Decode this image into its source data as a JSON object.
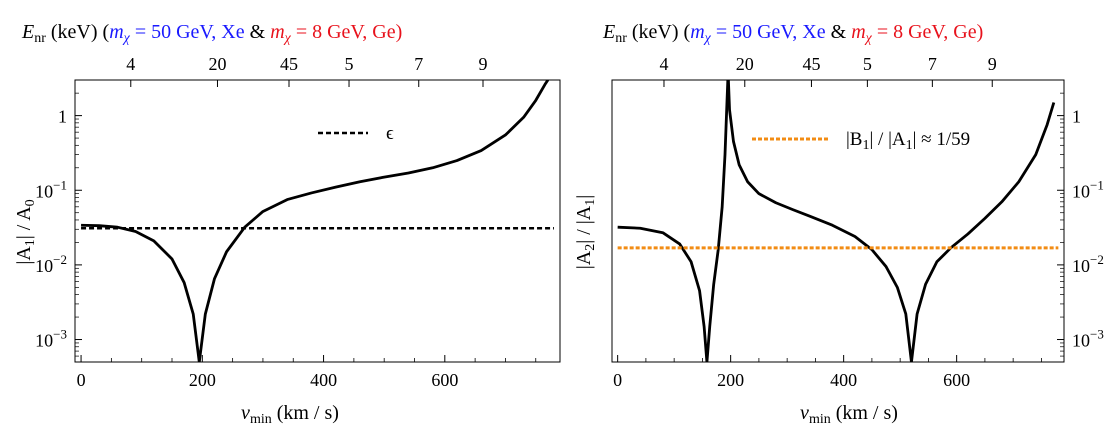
{
  "colors": {
    "blue": "#1a1aff",
    "red": "#e8121c",
    "curve": "#000000",
    "eps_line": "#000000",
    "b_line": "#f28c14"
  },
  "top_title": {
    "e": "E",
    "nr": "nr",
    "kev": " (keV) (",
    "m1": "m",
    "chi1": "χ",
    "eq1": " = 50 GeV, Xe",
    "amp": " & ",
    "m2": "m",
    "chi2": "χ",
    "eq2": " = 8 GeV, Ge)",
    "close": ")"
  },
  "x_axis_title": {
    "v": "v",
    "min": "min",
    "units": "  (km / s)"
  },
  "chart_data": [
    {
      "type": "line",
      "x_ticks": [
        0,
        200,
        400,
        600
      ],
      "x_tick_labels": [
        "0",
        "200",
        "400",
        "600"
      ],
      "xlim": [
        -10,
        790
      ],
      "yscale": "log",
      "ylim": [
        0.0005,
        3
      ],
      "y_ticks": [
        0.001,
        0.01,
        0.1,
        1
      ],
      "y_tick_labels": [
        {
          "base": "10",
          "exp": "−3"
        },
        {
          "base": "10",
          "exp": "−2"
        },
        {
          "base": "10",
          "exp": "−1"
        },
        {
          "base": "1",
          "exp": ""
        }
      ],
      "y_label_side": "left",
      "ylabel": {
        "a": "|A",
        "sub1": "1",
        "b": "| / A",
        "sub2": "0"
      },
      "top_ticks": [
        {
          "label": "4",
          "x": 82,
          "color": "blue"
        },
        {
          "label": "20",
          "x": 225,
          "color": "blue"
        },
        {
          "label": "45",
          "x": 343,
          "color": "blue"
        },
        {
          "label": "5",
          "x": 442,
          "color": "red"
        },
        {
          "label": "7",
          "x": 557,
          "color": "red"
        },
        {
          "label": "9",
          "x": 663,
          "color": "red"
        }
      ],
      "series": [
        {
          "style": "solid",
          "points": [
            [
              0,
              0.034
            ],
            [
              30,
              0.0335
            ],
            [
              60,
              0.032
            ],
            [
              90,
              0.028
            ],
            [
              120,
              0.021
            ],
            [
              150,
              0.012
            ],
            [
              170,
              0.0058
            ],
            [
              185,
              0.0022
            ],
            [
              195,
              0.0005
            ],
            [
              205,
              0.0022
            ],
            [
              220,
              0.0065
            ],
            [
              240,
              0.015
            ],
            [
              270,
              0.032
            ],
            [
              300,
              0.052
            ],
            [
              340,
              0.075
            ],
            [
              380,
              0.092
            ],
            [
              420,
              0.11
            ],
            [
              460,
              0.13
            ],
            [
              500,
              0.15
            ],
            [
              540,
              0.17
            ],
            [
              580,
              0.2
            ],
            [
              620,
              0.25
            ],
            [
              660,
              0.34
            ],
            [
              700,
              0.55
            ],
            [
              730,
              0.95
            ],
            [
              750,
              1.6
            ],
            [
              765,
              2.6
            ],
            [
              770,
              3
            ]
          ]
        },
        {
          "style": "dashed",
          "points": [
            [
              0,
              0.031
            ],
            [
              780,
              0.031
            ]
          ]
        }
      ],
      "legend": {
        "text": "ϵ",
        "placement": "top-right"
      }
    },
    {
      "type": "line",
      "x_ticks": [
        0,
        200,
        400,
        600
      ],
      "x_tick_labels": [
        "0",
        "200",
        "400",
        "600"
      ],
      "xlim": [
        -10,
        790
      ],
      "yscale": "log",
      "ylim": [
        0.0005,
        3
      ],
      "y_ticks": [
        0.001,
        0.01,
        0.1,
        1
      ],
      "y_tick_labels": [
        {
          "base": "10",
          "exp": "−3"
        },
        {
          "base": "10",
          "exp": "−2"
        },
        {
          "base": "10",
          "exp": "−1"
        },
        {
          "base": "1",
          "exp": ""
        }
      ],
      "y_label_side": "right",
      "ylabel": {
        "a": "|A",
        "sub1": "2",
        "b": "| / |A",
        "sub2": "1",
        "c": "|"
      },
      "top_ticks": [
        {
          "label": "4",
          "x": 82,
          "color": "blue"
        },
        {
          "label": "20",
          "x": 225,
          "color": "blue"
        },
        {
          "label": "45",
          "x": 343,
          "color": "blue"
        },
        {
          "label": "5",
          "x": 442,
          "color": "red"
        },
        {
          "label": "7",
          "x": 557,
          "color": "red"
        },
        {
          "label": "9",
          "x": 663,
          "color": "red"
        }
      ],
      "series": [
        {
          "style": "solid",
          "points": [
            [
              0,
              0.032
            ],
            [
              40,
              0.031
            ],
            [
              80,
              0.027
            ],
            [
              110,
              0.019
            ],
            [
              130,
              0.011
            ],
            [
              145,
              0.0045
            ],
            [
              153,
              0.0015
            ],
            [
              158,
              0.0005
            ],
            [
              163,
              0.0015
            ],
            [
              170,
              0.0055
            ],
            [
              178,
              0.016
            ],
            [
              185,
              0.06
            ],
            [
              190,
              0.3
            ],
            [
              193,
              1.2
            ],
            [
              195,
              3
            ]
          ]
        },
        {
          "style": "solid",
          "points": [
            [
              196,
              3
            ],
            [
              198,
              1.2
            ],
            [
              205,
              0.45
            ],
            [
              215,
              0.22
            ],
            [
              230,
              0.13
            ],
            [
              250,
              0.09
            ],
            [
              280,
              0.068
            ],
            [
              310,
              0.055
            ],
            [
              340,
              0.045
            ],
            [
              380,
              0.034
            ],
            [
              420,
              0.024
            ],
            [
              450,
              0.016
            ],
            [
              475,
              0.0095
            ],
            [
              495,
              0.005
            ],
            [
              510,
              0.0022
            ],
            [
              520,
              0.0005
            ],
            [
              530,
              0.0022
            ],
            [
              545,
              0.0055
            ],
            [
              565,
              0.011
            ],
            [
              590,
              0.017
            ],
            [
              620,
              0.026
            ],
            [
              650,
              0.042
            ],
            [
              680,
              0.07
            ],
            [
              710,
              0.13
            ],
            [
              740,
              0.3
            ],
            [
              760,
              0.75
            ],
            [
              772,
              1.5
            ]
          ]
        },
        {
          "style": "dashed-orange",
          "points": [
            [
              0,
              0.0169
            ],
            [
              780,
              0.0169
            ]
          ]
        }
      ],
      "legend": {
        "a": "|B",
        "sub1": "1",
        "b": "| / |A",
        "sub2": "1",
        "c": "| ≈ 1/59",
        "placement": "top-right"
      }
    }
  ]
}
